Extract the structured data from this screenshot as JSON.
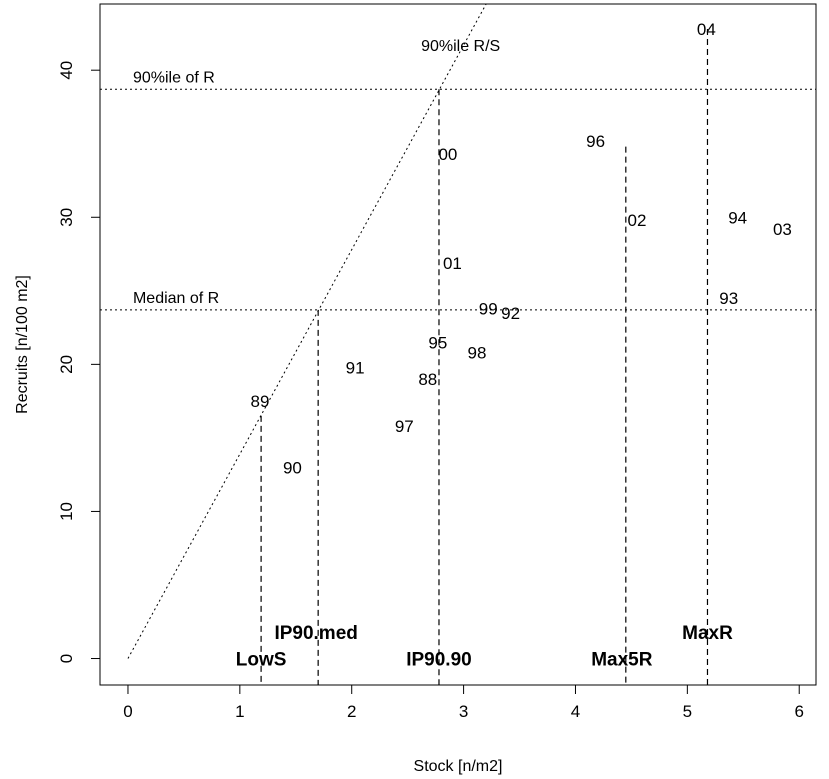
{
  "chart_data": {
    "type": "scatter",
    "xlabel": "Stock [n/m2]",
    "ylabel": "Recruits [n/100 m2]",
    "xlim": [
      -0.25,
      6.15
    ],
    "ylim": [
      -1.8,
      44.5
    ],
    "x_ticks": [
      0,
      1,
      2,
      3,
      4,
      5,
      6
    ],
    "y_ticks": [
      0,
      10,
      20,
      30,
      40
    ],
    "grid": false,
    "points": [
      {
        "label": "88",
        "x": 2.68,
        "y": 19.0
      },
      {
        "label": "89",
        "x": 1.18,
        "y": 17.5
      },
      {
        "label": "90",
        "x": 1.47,
        "y": 13.0
      },
      {
        "label": "91",
        "x": 2.03,
        "y": 19.8
      },
      {
        "label": "92",
        "x": 3.42,
        "y": 23.5
      },
      {
        "label": "93",
        "x": 5.37,
        "y": 24.5
      },
      {
        "label": "94",
        "x": 5.45,
        "y": 30.0
      },
      {
        "label": "95",
        "x": 2.77,
        "y": 21.5
      },
      {
        "label": "96",
        "x": 4.18,
        "y": 35.2
      },
      {
        "label": "97",
        "x": 2.47,
        "y": 15.8
      },
      {
        "label": "98",
        "x": 3.12,
        "y": 20.8
      },
      {
        "label": "99",
        "x": 3.22,
        "y": 23.8
      },
      {
        "label": "00",
        "x": 2.86,
        "y": 34.3
      },
      {
        "label": "01",
        "x": 2.9,
        "y": 26.9
      },
      {
        "label": "02",
        "x": 4.55,
        "y": 29.8
      },
      {
        "label": "03",
        "x": 5.85,
        "y": 29.2
      },
      {
        "label": "04",
        "x": 5.17,
        "y": 42.8
      }
    ],
    "reference_lines": [
      {
        "kind": "horizontal",
        "label": "90%ile of R",
        "y": 38.7
      },
      {
        "kind": "horizontal",
        "label": "Median of R",
        "y": 23.7
      },
      {
        "kind": "line_through_origin",
        "label": "90%ile R/S",
        "slope": 13.9
      }
    ],
    "breakpoints": [
      {
        "label": "LowS",
        "x": 1.19,
        "y_top": 16.5
      },
      {
        "label": "IP90.med",
        "x": 1.7,
        "y_top": 23.7
      },
      {
        "label": "IP90.90",
        "x": 2.78,
        "y_top": 38.7
      },
      {
        "label": "Max5R",
        "x": 4.45,
        "y_top": 34.8
      },
      {
        "label": "MaxR",
        "x": 5.18,
        "y_top": 42.8
      }
    ]
  }
}
